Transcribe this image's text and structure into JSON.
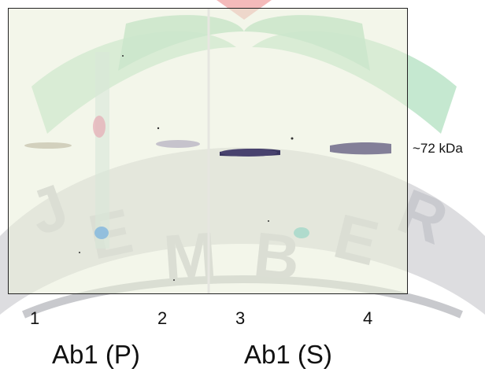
{
  "blot": {
    "marker_label": "~72 kDa",
    "lanes": [
      "1",
      "2",
      "3",
      "4"
    ],
    "groups": [
      "Ab1 (P)",
      "Ab1 (S)"
    ]
  },
  "watermark": {
    "letters": [
      "J",
      "E",
      "M",
      "B",
      "E",
      "R"
    ],
    "colors": {
      "green": "#8fd0a6",
      "gray": "#b9bac0",
      "pink": "#f3a6a6"
    }
  }
}
